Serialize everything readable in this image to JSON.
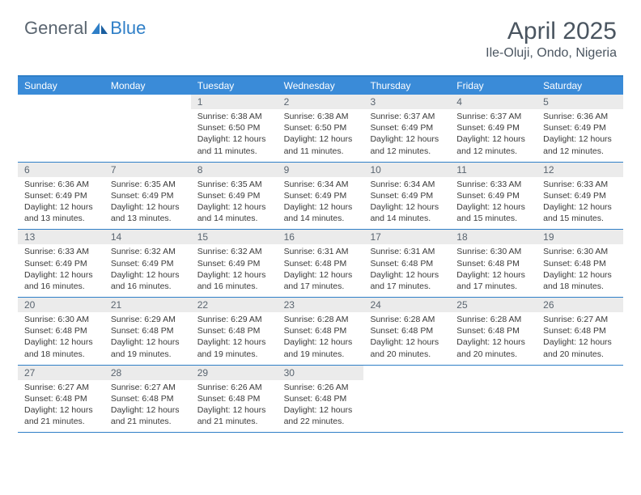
{
  "brand": {
    "word1": "General",
    "word2": "Blue"
  },
  "title": "April 2025",
  "location": "Ile-Oluji, Ondo, Nigeria",
  "calendar": {
    "header_bg": "#3a8bd8",
    "border_color": "#2f7fc7",
    "daynum_bg": "#ebebeb",
    "text_color": "#3a3a3a",
    "day_names": [
      "Sunday",
      "Monday",
      "Tuesday",
      "Wednesday",
      "Thursday",
      "Friday",
      "Saturday"
    ],
    "weeks": [
      [
        null,
        null,
        {
          "n": "1",
          "sunrise": "Sunrise: 6:38 AM",
          "sunset": "Sunset: 6:50 PM",
          "daylight": "Daylight: 12 hours and 11 minutes."
        },
        {
          "n": "2",
          "sunrise": "Sunrise: 6:38 AM",
          "sunset": "Sunset: 6:50 PM",
          "daylight": "Daylight: 12 hours and 11 minutes."
        },
        {
          "n": "3",
          "sunrise": "Sunrise: 6:37 AM",
          "sunset": "Sunset: 6:49 PM",
          "daylight": "Daylight: 12 hours and 12 minutes."
        },
        {
          "n": "4",
          "sunrise": "Sunrise: 6:37 AM",
          "sunset": "Sunset: 6:49 PM",
          "daylight": "Daylight: 12 hours and 12 minutes."
        },
        {
          "n": "5",
          "sunrise": "Sunrise: 6:36 AM",
          "sunset": "Sunset: 6:49 PM",
          "daylight": "Daylight: 12 hours and 12 minutes."
        }
      ],
      [
        {
          "n": "6",
          "sunrise": "Sunrise: 6:36 AM",
          "sunset": "Sunset: 6:49 PM",
          "daylight": "Daylight: 12 hours and 13 minutes."
        },
        {
          "n": "7",
          "sunrise": "Sunrise: 6:35 AM",
          "sunset": "Sunset: 6:49 PM",
          "daylight": "Daylight: 12 hours and 13 minutes."
        },
        {
          "n": "8",
          "sunrise": "Sunrise: 6:35 AM",
          "sunset": "Sunset: 6:49 PM",
          "daylight": "Daylight: 12 hours and 14 minutes."
        },
        {
          "n": "9",
          "sunrise": "Sunrise: 6:34 AM",
          "sunset": "Sunset: 6:49 PM",
          "daylight": "Daylight: 12 hours and 14 minutes."
        },
        {
          "n": "10",
          "sunrise": "Sunrise: 6:34 AM",
          "sunset": "Sunset: 6:49 PM",
          "daylight": "Daylight: 12 hours and 14 minutes."
        },
        {
          "n": "11",
          "sunrise": "Sunrise: 6:33 AM",
          "sunset": "Sunset: 6:49 PM",
          "daylight": "Daylight: 12 hours and 15 minutes."
        },
        {
          "n": "12",
          "sunrise": "Sunrise: 6:33 AM",
          "sunset": "Sunset: 6:49 PM",
          "daylight": "Daylight: 12 hours and 15 minutes."
        }
      ],
      [
        {
          "n": "13",
          "sunrise": "Sunrise: 6:33 AM",
          "sunset": "Sunset: 6:49 PM",
          "daylight": "Daylight: 12 hours and 16 minutes."
        },
        {
          "n": "14",
          "sunrise": "Sunrise: 6:32 AM",
          "sunset": "Sunset: 6:49 PM",
          "daylight": "Daylight: 12 hours and 16 minutes."
        },
        {
          "n": "15",
          "sunrise": "Sunrise: 6:32 AM",
          "sunset": "Sunset: 6:49 PM",
          "daylight": "Daylight: 12 hours and 16 minutes."
        },
        {
          "n": "16",
          "sunrise": "Sunrise: 6:31 AM",
          "sunset": "Sunset: 6:48 PM",
          "daylight": "Daylight: 12 hours and 17 minutes."
        },
        {
          "n": "17",
          "sunrise": "Sunrise: 6:31 AM",
          "sunset": "Sunset: 6:48 PM",
          "daylight": "Daylight: 12 hours and 17 minutes."
        },
        {
          "n": "18",
          "sunrise": "Sunrise: 6:30 AM",
          "sunset": "Sunset: 6:48 PM",
          "daylight": "Daylight: 12 hours and 17 minutes."
        },
        {
          "n": "19",
          "sunrise": "Sunrise: 6:30 AM",
          "sunset": "Sunset: 6:48 PM",
          "daylight": "Daylight: 12 hours and 18 minutes."
        }
      ],
      [
        {
          "n": "20",
          "sunrise": "Sunrise: 6:30 AM",
          "sunset": "Sunset: 6:48 PM",
          "daylight": "Daylight: 12 hours and 18 minutes."
        },
        {
          "n": "21",
          "sunrise": "Sunrise: 6:29 AM",
          "sunset": "Sunset: 6:48 PM",
          "daylight": "Daylight: 12 hours and 19 minutes."
        },
        {
          "n": "22",
          "sunrise": "Sunrise: 6:29 AM",
          "sunset": "Sunset: 6:48 PM",
          "daylight": "Daylight: 12 hours and 19 minutes."
        },
        {
          "n": "23",
          "sunrise": "Sunrise: 6:28 AM",
          "sunset": "Sunset: 6:48 PM",
          "daylight": "Daylight: 12 hours and 19 minutes."
        },
        {
          "n": "24",
          "sunrise": "Sunrise: 6:28 AM",
          "sunset": "Sunset: 6:48 PM",
          "daylight": "Daylight: 12 hours and 20 minutes."
        },
        {
          "n": "25",
          "sunrise": "Sunrise: 6:28 AM",
          "sunset": "Sunset: 6:48 PM",
          "daylight": "Daylight: 12 hours and 20 minutes."
        },
        {
          "n": "26",
          "sunrise": "Sunrise: 6:27 AM",
          "sunset": "Sunset: 6:48 PM",
          "daylight": "Daylight: 12 hours and 20 minutes."
        }
      ],
      [
        {
          "n": "27",
          "sunrise": "Sunrise: 6:27 AM",
          "sunset": "Sunset: 6:48 PM",
          "daylight": "Daylight: 12 hours and 21 minutes."
        },
        {
          "n": "28",
          "sunrise": "Sunrise: 6:27 AM",
          "sunset": "Sunset: 6:48 PM",
          "daylight": "Daylight: 12 hours and 21 minutes."
        },
        {
          "n": "29",
          "sunrise": "Sunrise: 6:26 AM",
          "sunset": "Sunset: 6:48 PM",
          "daylight": "Daylight: 12 hours and 21 minutes."
        },
        {
          "n": "30",
          "sunrise": "Sunrise: 6:26 AM",
          "sunset": "Sunset: 6:48 PM",
          "daylight": "Daylight: 12 hours and 22 minutes."
        },
        null,
        null,
        null
      ]
    ]
  }
}
